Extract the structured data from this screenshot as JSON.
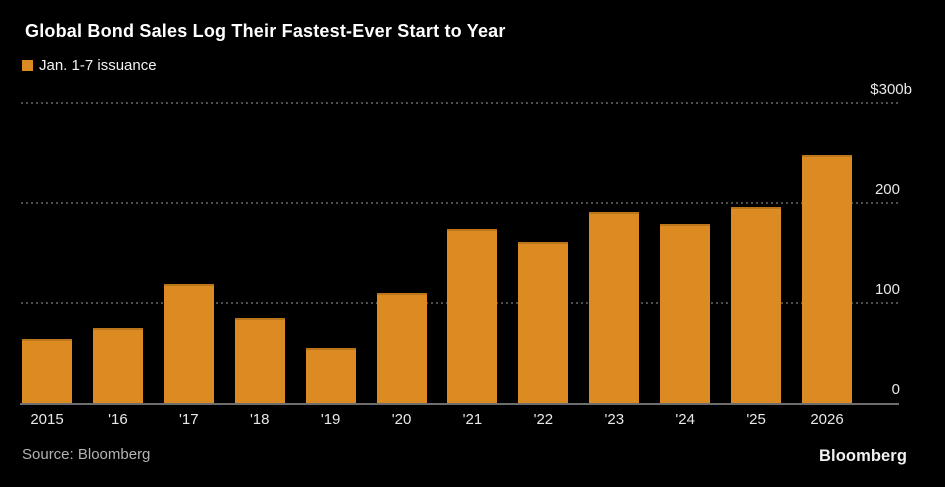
{
  "header": {
    "title": "Global Bond Sales Log Their Fastest-Ever Start to Year"
  },
  "legend": {
    "label": "Jan. 1-7 issuance",
    "swatch_color": "#DC8B22"
  },
  "chart_data": {
    "type": "bar",
    "title": "Global Bond Sales Log Their Fastest-Ever Start to Year",
    "legend_entries": [
      "Jan. 1-7 issuance"
    ],
    "legend_position": "top-left",
    "categories": [
      "2015",
      "'16",
      "'17",
      "'18",
      "'19",
      "'20",
      "'21",
      "'22",
      "'23",
      "'24",
      "'25",
      "2026"
    ],
    "values": [
      64,
      75,
      119,
      85,
      55,
      110,
      174,
      161,
      191,
      179,
      196,
      248
    ],
    "xlabel": "",
    "ylabel": "",
    "ylim": [
      0,
      300
    ],
    "y_ticks": [
      {
        "value": 0,
        "label": "0"
      },
      {
        "value": 100,
        "label": "100"
      },
      {
        "value": 200,
        "label": "200"
      },
      {
        "value": 300,
        "label": "$300b"
      }
    ],
    "grid": "horizontal-dotted",
    "bar_color": "#DC8B22"
  },
  "footer": {
    "source": "Source: Bloomberg",
    "brand": "Bloomberg"
  },
  "colors": {
    "background": "#000000",
    "bar": "#DC8B22",
    "grid": "#4E4E4E",
    "axis_line": "#6E6E6E",
    "tick_text": "#E8E8E8",
    "title_text": "#FFFFFF",
    "source_text": "#B3B3B3"
  }
}
